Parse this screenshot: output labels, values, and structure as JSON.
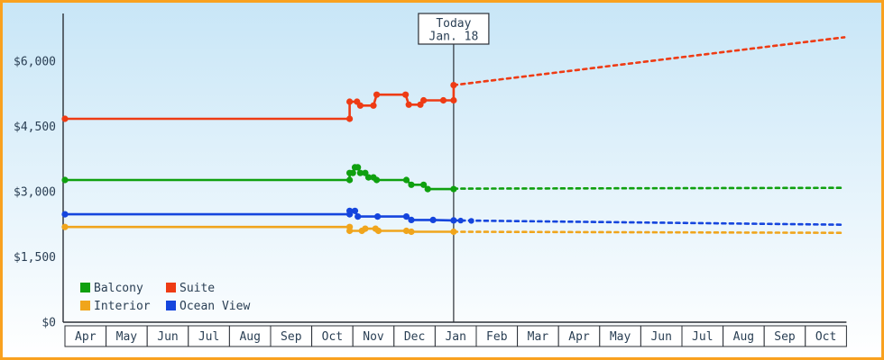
{
  "chart_data": {
    "type": "line",
    "title": "",
    "x_categories": [
      "Apr",
      "May",
      "Jun",
      "Jul",
      "Aug",
      "Sep",
      "Oct",
      "Nov",
      "Dec",
      "Jan",
      "Feb",
      "Mar",
      "Apr",
      "May",
      "Jun",
      "Jul",
      "Aug",
      "Sep",
      "Oct"
    ],
    "y_ticks": [
      {
        "value": 0,
        "label": "$0"
      },
      {
        "value": 1500,
        "label": "$1,500"
      },
      {
        "value": 3000,
        "label": "$3,000"
      },
      {
        "value": 4500,
        "label": "$4,500"
      },
      {
        "value": 6000,
        "label": "$6,000"
      }
    ],
    "ylim": [
      0,
      6000
    ],
    "today": {
      "label_lines": [
        "Today",
        "Jan. 18"
      ],
      "month_x": 9.45
    },
    "series": [
      {
        "name": "Balcony",
        "color": "#0fa00f",
        "solid": [
          [
            0,
            3270
          ],
          [
            6.92,
            3270
          ],
          [
            6.92,
            3430
          ],
          [
            7.0,
            3430
          ],
          [
            7.05,
            3560
          ],
          [
            7.12,
            3560
          ],
          [
            7.18,
            3430
          ],
          [
            7.3,
            3430
          ],
          [
            7.38,
            3330
          ],
          [
            7.5,
            3330
          ],
          [
            7.58,
            3270
          ],
          [
            8.3,
            3270
          ],
          [
            8.42,
            3160
          ],
          [
            8.72,
            3160
          ],
          [
            8.82,
            3060
          ],
          [
            9.45,
            3060
          ]
        ],
        "projection": [
          [
            9.45,
            3070
          ],
          [
            18.95,
            3090
          ]
        ]
      },
      {
        "name": "Suite",
        "color": "#ee3b14",
        "solid": [
          [
            0,
            4675
          ],
          [
            6.92,
            4675
          ],
          [
            6.92,
            5070
          ],
          [
            7.1,
            5070
          ],
          [
            7.18,
            4980
          ],
          [
            7.5,
            4980
          ],
          [
            7.58,
            5230
          ],
          [
            8.28,
            5230
          ],
          [
            8.36,
            5000
          ],
          [
            8.64,
            5000
          ],
          [
            8.72,
            5100
          ],
          [
            9.2,
            5100
          ],
          [
            9.45,
            5100
          ],
          [
            9.45,
            5450
          ]
        ],
        "projection": [
          [
            9.45,
            5450
          ],
          [
            18.95,
            6550
          ]
        ]
      },
      {
        "name": "Interior",
        "color": "#f0a51c",
        "solid": [
          [
            0,
            2190
          ],
          [
            6.92,
            2190
          ],
          [
            6.92,
            2100
          ],
          [
            7.22,
            2100
          ],
          [
            7.3,
            2150
          ],
          [
            7.55,
            2150
          ],
          [
            7.62,
            2100
          ],
          [
            8.3,
            2100
          ],
          [
            8.42,
            2080
          ],
          [
            9.45,
            2080
          ]
        ],
        "projection": [
          [
            9.45,
            2080
          ],
          [
            18.95,
            2055
          ]
        ]
      },
      {
        "name": "Ocean View",
        "color": "#1545dd",
        "solid": [
          [
            0,
            2480
          ],
          [
            6.92,
            2480
          ],
          [
            6.92,
            2560
          ],
          [
            7.05,
            2560
          ],
          [
            7.12,
            2430
          ],
          [
            7.6,
            2430
          ],
          [
            8.3,
            2430
          ],
          [
            8.42,
            2350
          ],
          [
            8.95,
            2350
          ],
          [
            9.45,
            2340
          ]
        ],
        "projection": [
          [
            9.45,
            2340
          ],
          [
            18.95,
            2240
          ]
        ],
        "projection_dots": [
          [
            9.62,
            2335
          ],
          [
            9.88,
            2330
          ]
        ]
      }
    ],
    "legend": {
      "items": [
        "Balcony",
        "Suite",
        "Interior",
        "Ocean View"
      ],
      "position": "bottom-left"
    },
    "grid": false,
    "colors": {
      "background_top": "#c8e6f7",
      "background_bottom": "#ffffff",
      "border": "#f9a11f",
      "axis": "#2b2f36",
      "text": "#2a3f54",
      "cell_fill": "#ffffff",
      "today_box_fill": "#ffffff"
    }
  }
}
